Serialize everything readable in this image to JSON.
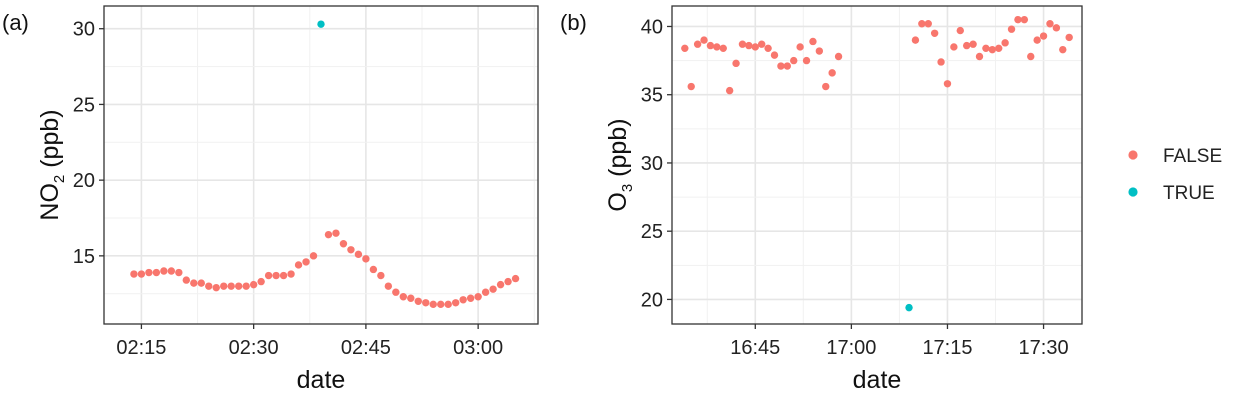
{
  "chart_data": [
    {
      "type": "scatter",
      "panel_label": "(a)",
      "xlabel": "date",
      "ylabel": {
        "prefix": "NO",
        "sub": "2",
        "suffix": " (ppb)"
      },
      "x_unit": "minutes",
      "xlim": [
        "02:10",
        "03:08"
      ],
      "ylim": [
        10.5,
        31.5
      ],
      "x_ticks": [
        "02:15",
        "02:30",
        "02:45",
        "03:00"
      ],
      "y_ticks": [
        15,
        20,
        25,
        30
      ],
      "grid": true,
      "series": [
        {
          "name": "FALSE",
          "color": "#F8766D",
          "points": [
            [
              "02:14",
              13.8
            ],
            [
              "02:15",
              13.8
            ],
            [
              "02:16",
              13.9
            ],
            [
              "02:17",
              13.9
            ],
            [
              "02:18",
              14.0
            ],
            [
              "02:19",
              14.0
            ],
            [
              "02:20",
              13.9
            ],
            [
              "02:21",
              13.4
            ],
            [
              "02:22",
              13.2
            ],
            [
              "02:23",
              13.2
            ],
            [
              "02:24",
              13.0
            ],
            [
              "02:25",
              12.9
            ],
            [
              "02:26",
              13.0
            ],
            [
              "02:27",
              13.0
            ],
            [
              "02:28",
              13.0
            ],
            [
              "02:29",
              13.0
            ],
            [
              "02:30",
              13.1
            ],
            [
              "02:31",
              13.3
            ],
            [
              "02:32",
              13.7
            ],
            [
              "02:33",
              13.7
            ],
            [
              "02:34",
              13.7
            ],
            [
              "02:35",
              13.8
            ],
            [
              "02:36",
              14.4
            ],
            [
              "02:37",
              14.6
            ],
            [
              "02:38",
              15.0
            ],
            [
              "02:40",
              16.4
            ],
            [
              "02:41",
              16.5
            ],
            [
              "02:42",
              15.8
            ],
            [
              "02:43",
              15.4
            ],
            [
              "02:44",
              15.1
            ],
            [
              "02:45",
              14.8
            ],
            [
              "02:46",
              14.1
            ],
            [
              "02:47",
              13.7
            ],
            [
              "02:48",
              13.0
            ],
            [
              "02:49",
              12.6
            ],
            [
              "02:50",
              12.3
            ],
            [
              "02:51",
              12.2
            ],
            [
              "02:52",
              12.0
            ],
            [
              "02:53",
              11.9
            ],
            [
              "02:54",
              11.8
            ],
            [
              "02:55",
              11.8
            ],
            [
              "02:56",
              11.8
            ],
            [
              "02:57",
              11.9
            ],
            [
              "02:58",
              12.1
            ],
            [
              "02:59",
              12.2
            ],
            [
              "03:00",
              12.3
            ],
            [
              "03:01",
              12.6
            ],
            [
              "03:02",
              12.8
            ],
            [
              "03:03",
              13.1
            ],
            [
              "03:04",
              13.3
            ],
            [
              "03:05",
              13.5
            ]
          ]
        },
        {
          "name": "TRUE",
          "color": "#00BFC4",
          "points": [
            [
              "02:39",
              30.3
            ]
          ]
        }
      ]
    },
    {
      "type": "scatter",
      "panel_label": "(b)",
      "xlabel": "date",
      "ylabel": {
        "prefix": "O",
        "sub": "3",
        "suffix": " (ppb)"
      },
      "x_unit": "minutes",
      "xlim": [
        "16:32",
        "17:36"
      ],
      "ylim": [
        18.2,
        41.5
      ],
      "x_ticks": [
        "16:45",
        "17:00",
        "17:15",
        "17:30"
      ],
      "y_ticks": [
        20,
        25,
        30,
        35,
        40
      ],
      "grid": true,
      "series": [
        {
          "name": "FALSE",
          "color": "#F8766D",
          "points": [
            [
              "16:34",
              38.4
            ],
            [
              "16:35",
              35.6
            ],
            [
              "16:36",
              38.7
            ],
            [
              "16:37",
              39.0
            ],
            [
              "16:38",
              38.6
            ],
            [
              "16:39",
              38.5
            ],
            [
              "16:40",
              38.4
            ],
            [
              "16:41",
              35.3
            ],
            [
              "16:42",
              37.3
            ],
            [
              "16:43",
              38.7
            ],
            [
              "16:44",
              38.6
            ],
            [
              "16:45",
              38.5
            ],
            [
              "16:46",
              38.7
            ],
            [
              "16:47",
              38.4
            ],
            [
              "16:48",
              37.9
            ],
            [
              "16:49",
              37.1
            ],
            [
              "16:50",
              37.1
            ],
            [
              "16:51",
              37.5
            ],
            [
              "16:52",
              38.5
            ],
            [
              "16:53",
              37.5
            ],
            [
              "16:54",
              38.9
            ],
            [
              "16:55",
              38.2
            ],
            [
              "16:56",
              35.6
            ],
            [
              "16:57",
              36.6
            ],
            [
              "16:58",
              37.8
            ],
            [
              "17:10",
              39.0
            ],
            [
              "17:11",
              40.2
            ],
            [
              "17:12",
              40.2
            ],
            [
              "17:13",
              39.5
            ],
            [
              "17:14",
              37.4
            ],
            [
              "17:15",
              35.8
            ],
            [
              "17:16",
              38.5
            ],
            [
              "17:17",
              39.7
            ],
            [
              "17:18",
              38.6
            ],
            [
              "17:19",
              38.7
            ],
            [
              "17:20",
              37.8
            ],
            [
              "17:21",
              38.4
            ],
            [
              "17:22",
              38.3
            ],
            [
              "17:23",
              38.4
            ],
            [
              "17:24",
              38.8
            ],
            [
              "17:25",
              39.8
            ],
            [
              "17:26",
              40.5
            ],
            [
              "17:27",
              40.5
            ],
            [
              "17:28",
              37.8
            ],
            [
              "17:29",
              39.0
            ],
            [
              "17:30",
              39.3
            ],
            [
              "17:31",
              40.2
            ],
            [
              "17:32",
              39.9
            ],
            [
              "17:33",
              38.3
            ],
            [
              "17:34",
              39.2
            ]
          ]
        },
        {
          "name": "TRUE",
          "color": "#00BFC4",
          "points": [
            [
              "17:09",
              19.4
            ]
          ]
        }
      ]
    }
  ],
  "legend": {
    "placement": "right",
    "items": [
      {
        "label": "FALSE",
        "color": "#F8766D"
      },
      {
        "label": "TRUE",
        "color": "#00BFC4"
      }
    ]
  }
}
